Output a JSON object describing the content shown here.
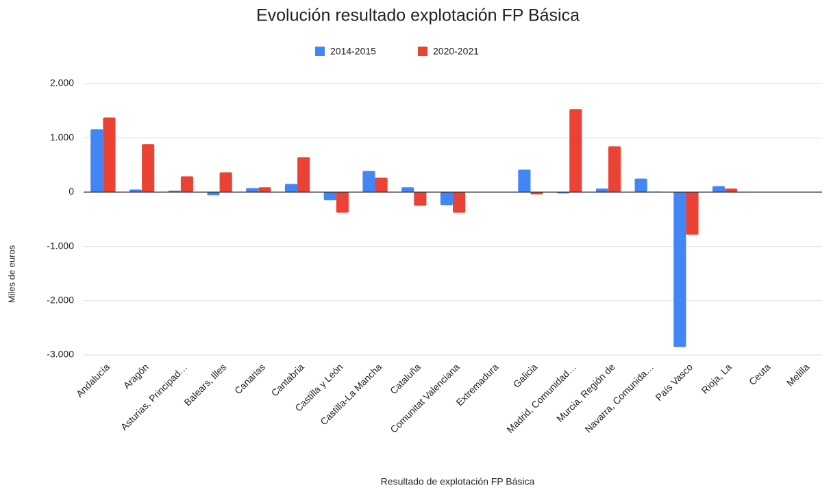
{
  "chart_data": {
    "type": "bar",
    "title": "Evolución resultado explotación FP Básica",
    "x_label": "Resultado de explotación FP Básica",
    "y_label": "Miles de euros",
    "categories": [
      "Andalucía",
      "Aragón",
      "Asturias, Principad…",
      "Balears, Illes",
      "Canarias",
      "Cantabria",
      "Castilla y León",
      "Castilla-La Mancha",
      "Cataluña",
      "Comunitat Valenciana",
      "Extremadura",
      "Galicia",
      "Madrid, Comunidad…",
      "Murcia, Región de",
      "Navarra, Comunida…",
      "País Vasco",
      "Rioja, La",
      "Ceuta",
      "Melilla"
    ],
    "series": [
      {
        "name": "2014-2015",
        "color": "#4285f4",
        "values": [
          1160,
          50,
          25,
          -60,
          75,
          150,
          -150,
          390,
          90,
          -240,
          5,
          415,
          -25,
          65,
          250,
          -2855,
          110,
          0,
          0
        ]
      },
      {
        "name": "2020-2021",
        "color": "#ea4335",
        "values": [
          1375,
          885,
          290,
          365,
          90,
          645,
          -380,
          265,
          -250,
          -380,
          0,
          -40,
          1530,
          845,
          10,
          -785,
          65,
          5,
          0
        ]
      }
    ],
    "ylim": [
      -3000,
      2000
    ],
    "yticks": [
      {
        "value": -3000,
        "label": "-3.000"
      },
      {
        "value": -2000,
        "label": "-2.000"
      },
      {
        "value": -1000,
        "label": "-1.000"
      },
      0,
      {
        "value": 1000,
        "label": "1.000"
      },
      {
        "value": 2000,
        "label": "2.000"
      }
    ],
    "grid": true,
    "legend": "top"
  }
}
